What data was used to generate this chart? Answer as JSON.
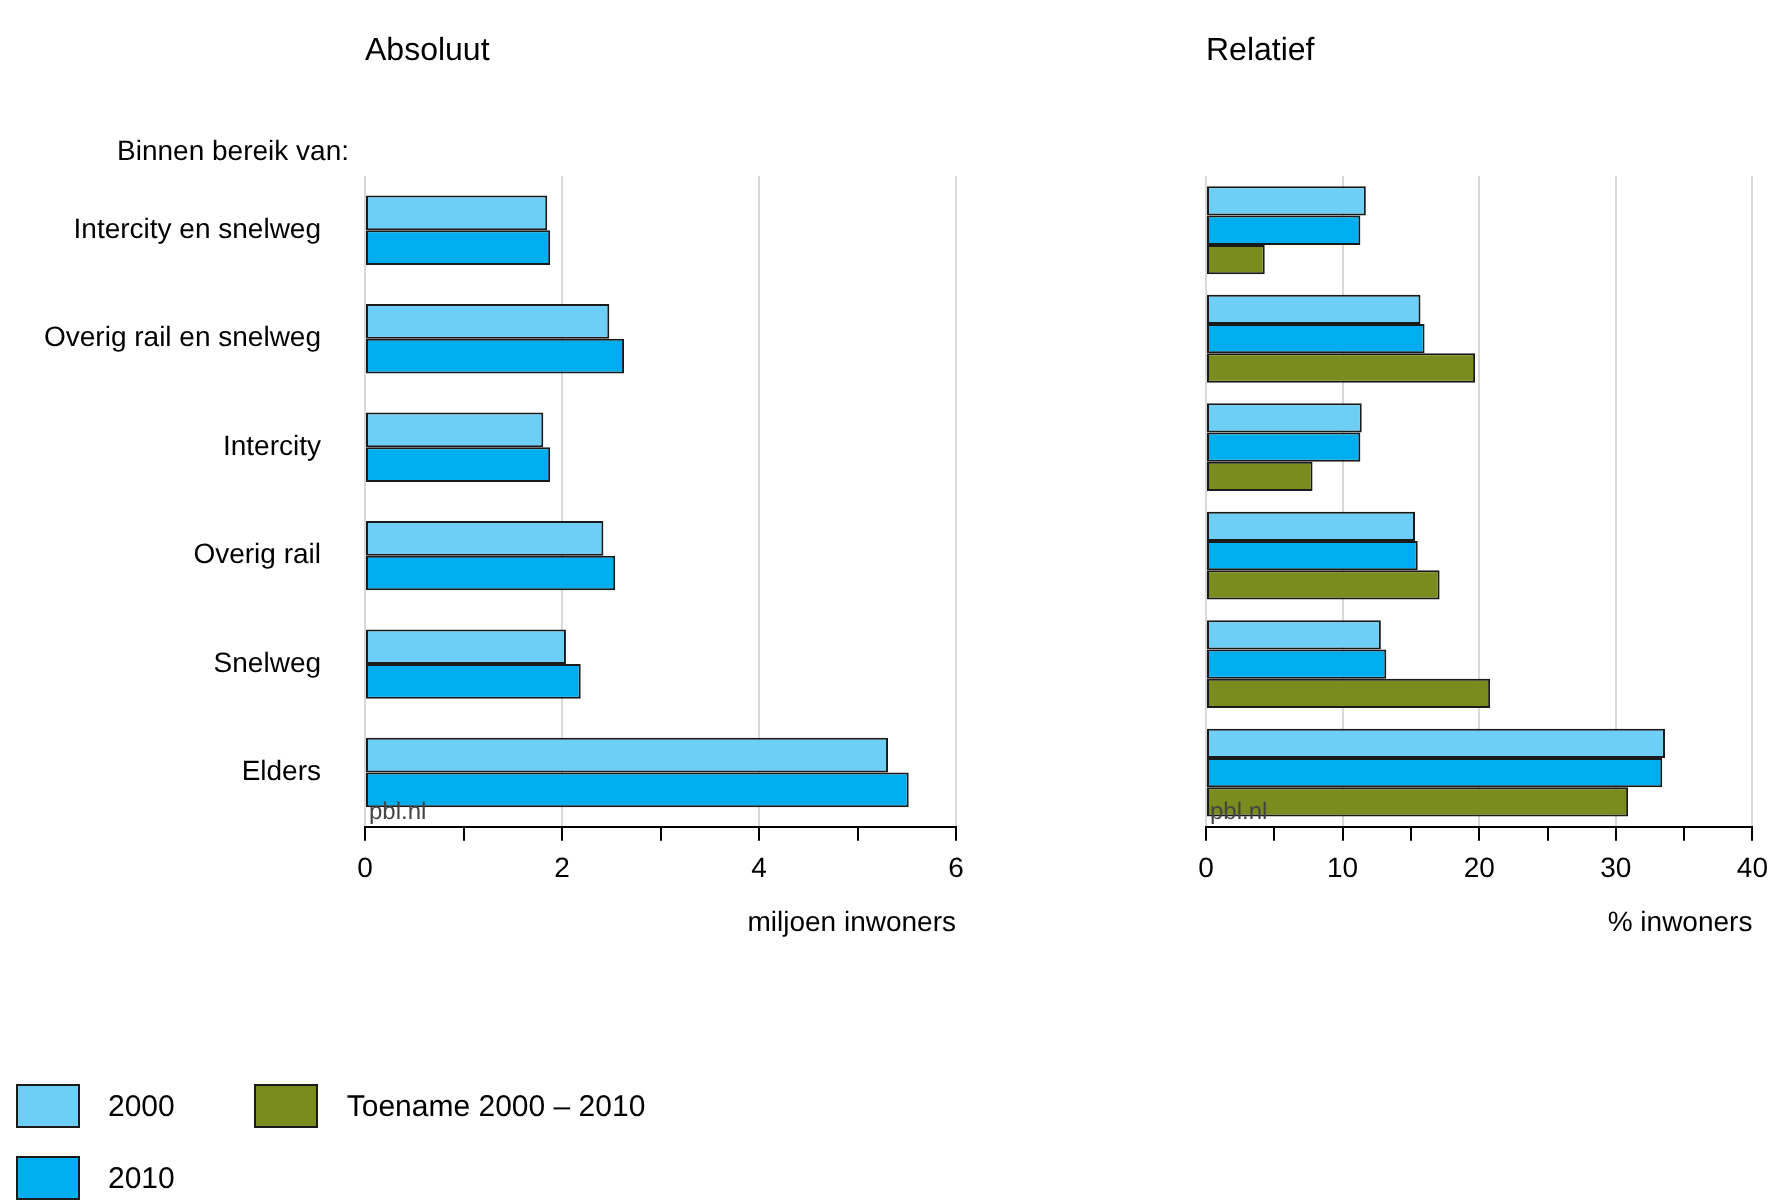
{
  "chart_data": [
    {
      "type": "bar",
      "orientation": "horizontal",
      "title": "Absoluut",
      "ylabel": "Binnen bereik van:",
      "xlabel": "miljoen inwoners",
      "categories": [
        "Intercity en snelweg",
        "Overig rail en snelweg",
        "Intercity",
        "Overig rail",
        "Snelweg",
        "Elders"
      ],
      "series": [
        {
          "name": "2000",
          "color": "#6dcff6",
          "values": [
            1.85,
            2.48,
            1.81,
            2.42,
            2.04,
            5.31
          ]
        },
        {
          "name": "2010",
          "color": "#00aeef",
          "values": [
            1.88,
            2.63,
            1.88,
            2.54,
            2.19,
            5.52
          ]
        }
      ],
      "xlim": [
        0,
        6
      ],
      "xticks": [
        0,
        {
          "value": 1,
          "label": null
        },
        2,
        {
          "value": 3,
          "label": null
        },
        4,
        {
          "value": 5,
          "label": null
        },
        6
      ],
      "grid": "x",
      "legend": "bottom",
      "annotations": [
        "pbl.nl"
      ]
    },
    {
      "type": "bar",
      "orientation": "horizontal",
      "title": "Relatief",
      "xlabel": "% inwoners",
      "categories": [
        null,
        null,
        null,
        null,
        null,
        null
      ],
      "series": [
        {
          "name": "2000",
          "color": "#6dcff6",
          "values": [
            11.7,
            15.7,
            11.4,
            15.3,
            12.8,
            33.6
          ]
        },
        {
          "name": "2010",
          "color": "#00aeef",
          "values": [
            11.3,
            16.0,
            11.3,
            15.5,
            13.2,
            33.4
          ]
        },
        {
          "name": "Toename 2000 – 2010",
          "color": "#7a8c1e",
          "values": [
            4.3,
            19.7,
            7.8,
            17.1,
            20.8,
            30.9
          ]
        }
      ],
      "xlim": [
        0,
        40
      ],
      "xticks": [
        0,
        {
          "value": 5,
          "label": null
        },
        10,
        {
          "value": 15,
          "label": null
        },
        20,
        {
          "value": 25,
          "label": null
        },
        30,
        {
          "value": 35,
          "label": null
        },
        40
      ],
      "grid": "x",
      "tick_labels": "x",
      "legend": "bottom",
      "annotations": [
        "pbl.nl"
      ]
    }
  ]
}
